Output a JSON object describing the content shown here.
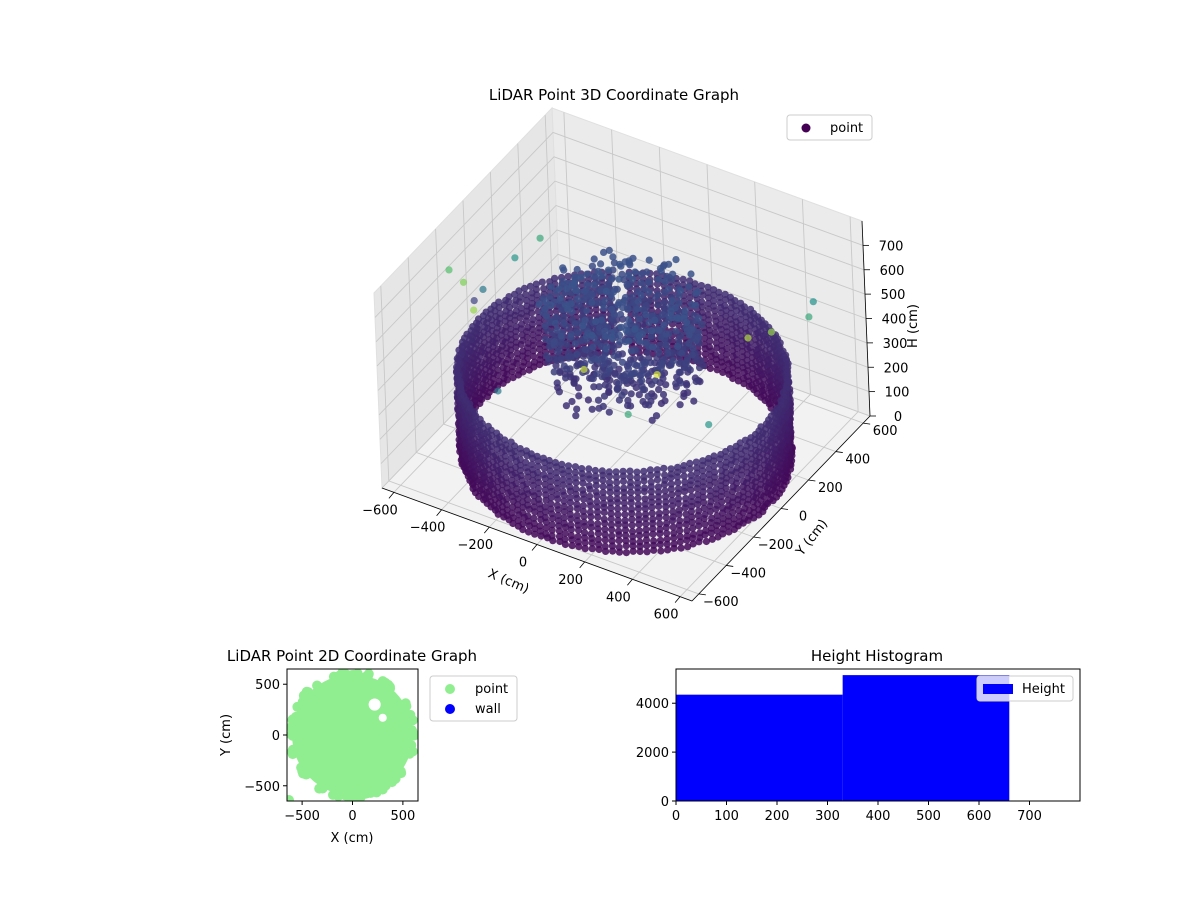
{
  "chart_data": [
    {
      "type": "scatter3d",
      "title": "LiDAR Point 3D Coordinate Graph",
      "xlabel": "X (cm)",
      "ylabel": "Y (cm)",
      "zlabel": "H (cm)",
      "xticks": [
        "−600",
        "−400",
        "−200",
        "0",
        "200",
        "400",
        "600"
      ],
      "yticks": [
        "−600",
        "−400",
        "−200",
        "0",
        "200",
        "400",
        "600"
      ],
      "zticks": [
        "0",
        "100",
        "200",
        "300",
        "400",
        "500",
        "600",
        "700"
      ],
      "xlim": [
        -650,
        650
      ],
      "ylim": [
        -650,
        650
      ],
      "zlim": [
        0,
        800
      ],
      "z_inverted": true,
      "colormap": "viridis",
      "legend": {
        "label": "point",
        "placement": "top-right",
        "color": "#440154"
      },
      "wall": {
        "shape": "cylinder",
        "radius_cm": 600,
        "height_range_cm": [
          0,
          330
        ],
        "gap_angle_deg": [
          118,
          124
        ]
      },
      "inner_cluster": {
        "center": [
          0,
          0
        ],
        "radius_cm": 300,
        "height_range_cm": [
          300,
          660
        ]
      },
      "outliers": [
        {
          "x": -620,
          "y": 0,
          "z": 400
        },
        {
          "x": -550,
          "y": -50,
          "z": 500
        },
        {
          "x": -500,
          "y": 100,
          "z": 560
        },
        {
          "x": -450,
          "y": 200,
          "z": 600
        },
        {
          "x": -480,
          "y": -300,
          "z": 700
        },
        {
          "x": -600,
          "y": -200,
          "z": 650
        },
        {
          "x": -350,
          "y": -450,
          "z": 720
        },
        {
          "x": 200,
          "y": -600,
          "z": 760
        },
        {
          "x": 450,
          "y": -500,
          "z": 770
        },
        {
          "x": 600,
          "y": -100,
          "z": 740
        },
        {
          "x": 620,
          "y": 300,
          "z": 600
        },
        {
          "x": 550,
          "y": 450,
          "z": 550
        },
        {
          "x": 640,
          "y": 0,
          "z": 720
        },
        {
          "x": -200,
          "y": -550,
          "z": 500
        },
        {
          "x": 350,
          "y": -550,
          "z": 600
        },
        {
          "x": 600,
          "y": -400,
          "z": 560
        }
      ]
    },
    {
      "type": "scatter",
      "title": "LiDAR Point 2D Coordinate Graph",
      "xlabel": "X (cm)",
      "ylabel": "Y (cm)",
      "xticks": [
        "−500",
        "0",
        "500"
      ],
      "yticks": [
        "−500",
        "0",
        "500"
      ],
      "xlim": [
        -650,
        650
      ],
      "ylim": [
        -650,
        650
      ],
      "series": [
        {
          "name": "point",
          "color": "#90ee90"
        },
        {
          "name": "wall",
          "color": "#0000ff"
        }
      ],
      "legend": {
        "placement": "outside-right"
      },
      "disk": {
        "center": [
          0,
          0
        ],
        "radius_cm": 600
      },
      "holes": [
        {
          "x": 220,
          "y": 300,
          "r": 60
        },
        {
          "x": 300,
          "y": 170,
          "r": 40
        }
      ]
    },
    {
      "type": "histogram",
      "title": "Height Histogram",
      "xticks": [
        "0",
        "100",
        "200",
        "300",
        "400",
        "500",
        "600",
        "700"
      ],
      "yticks": [
        "0",
        "2000",
        "4000"
      ],
      "xlim": [
        0,
        800
      ],
      "ylim": [
        0,
        5400
      ],
      "bins": [
        {
          "from": 0,
          "to": 330,
          "count": 4350
        },
        {
          "from": 330,
          "to": 660,
          "count": 5150
        }
      ],
      "color": "#0000ff",
      "legend": {
        "label": "Height",
        "placement": "top-right"
      }
    }
  ]
}
